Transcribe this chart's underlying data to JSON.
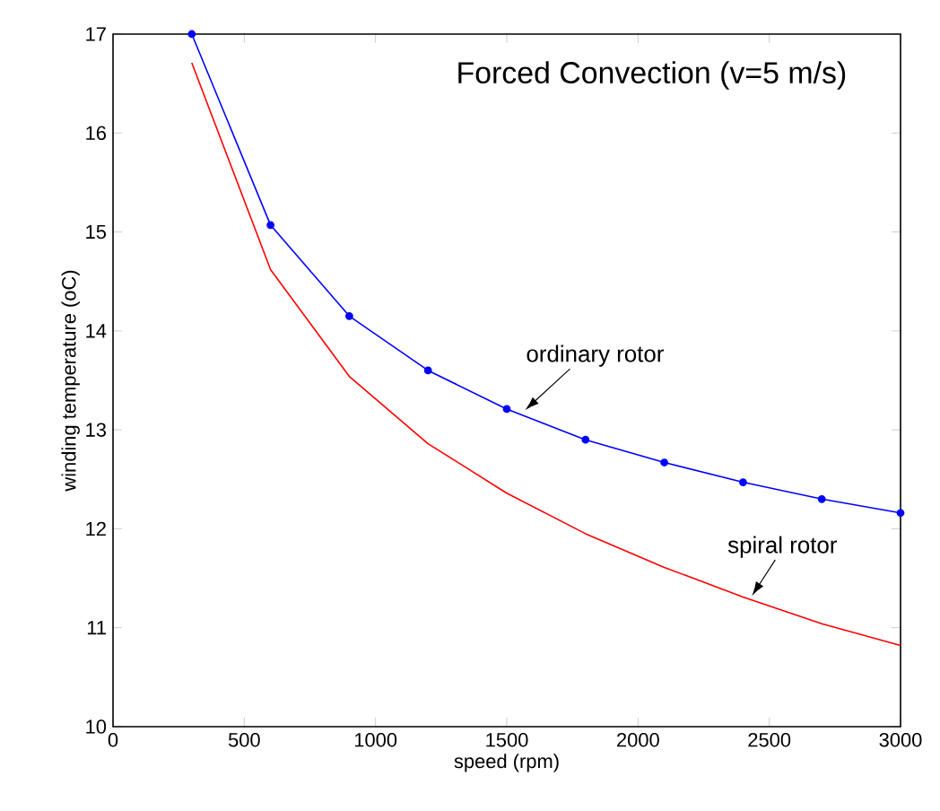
{
  "chart_data": {
    "type": "line",
    "title": "Forced Convection (v=5 m/s)",
    "xlabel": "speed (rpm)",
    "ylabel": "winding temperature (oC)",
    "x": [
      300,
      600,
      900,
      1200,
      1500,
      1800,
      2100,
      2400,
      2700,
      3000
    ],
    "series": [
      {
        "name": "ordinary rotor",
        "color": "#0000ff",
        "marker": "circle",
        "values": [
          17.0,
          15.07,
          14.15,
          13.6,
          13.21,
          12.9,
          12.67,
          12.47,
          12.3,
          12.16
        ]
      },
      {
        "name": "spiral rotor",
        "color": "#ff0000",
        "marker": "none",
        "values": [
          16.71,
          14.62,
          13.54,
          12.86,
          12.36,
          11.95,
          11.61,
          11.31,
          11.04,
          10.82
        ]
      }
    ],
    "xlim": [
      0,
      3000
    ],
    "ylim": [
      10,
      17
    ],
    "xticks": [
      0,
      500,
      1000,
      1500,
      2000,
      2500,
      3000
    ],
    "yticks": [
      10,
      11,
      12,
      13,
      14,
      15,
      16,
      17
    ],
    "grid": false,
    "legend": false
  }
}
